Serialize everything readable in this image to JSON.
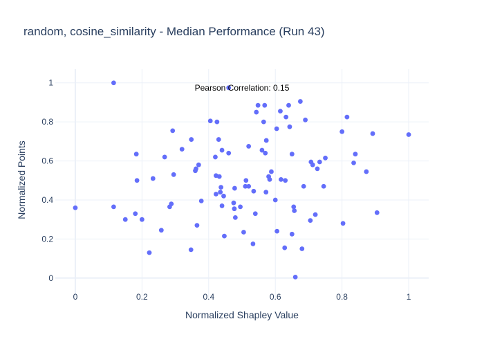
{
  "chart_data": {
    "type": "scatter",
    "title": "random, cosine_similarity - Median Performance (Run 43)",
    "xlabel": "Normalized Shapley Value",
    "ylabel": "Normalized Points",
    "xlim": [
      -0.06,
      1.06
    ],
    "ylim": [
      -0.1,
      1.07
    ],
    "xticks": [
      0,
      0.2,
      0.4,
      0.6,
      0.8,
      1
    ],
    "xtick_labels": [
      "0",
      "0.2",
      "0.4",
      "0.6",
      "0.8",
      "1"
    ],
    "yticks": [
      0,
      0.2,
      0.4,
      0.6,
      0.8,
      1
    ],
    "ytick_labels": [
      "0",
      "0.2",
      "0.4",
      "0.6",
      "0.8",
      "1"
    ],
    "grid": true,
    "marker_color": "#636efa",
    "annotation": {
      "text": "Pearson Correlation: 0.15",
      "x": 0.5,
      "y": 0.975
    },
    "series": [
      {
        "points": [
          [
            0.0,
            0.36
          ],
          [
            0.115,
            1.0
          ],
          [
            0.115,
            0.365
          ],
          [
            0.15,
            0.3
          ],
          [
            0.18,
            0.33
          ],
          [
            0.183,
            0.635
          ],
          [
            0.185,
            0.5
          ],
          [
            0.2,
            0.3
          ],
          [
            0.222,
            0.13
          ],
          [
            0.233,
            0.51
          ],
          [
            0.258,
            0.245
          ],
          [
            0.268,
            0.62
          ],
          [
            0.283,
            0.365
          ],
          [
            0.288,
            0.38
          ],
          [
            0.292,
            0.755
          ],
          [
            0.295,
            0.53
          ],
          [
            0.32,
            0.66
          ],
          [
            0.347,
            0.145
          ],
          [
            0.348,
            0.71
          ],
          [
            0.36,
            0.55
          ],
          [
            0.362,
            0.56
          ],
          [
            0.365,
            0.27
          ],
          [
            0.37,
            0.58
          ],
          [
            0.378,
            0.395
          ],
          [
            0.405,
            0.805
          ],
          [
            0.42,
            0.62
          ],
          [
            0.422,
            0.43
          ],
          [
            0.422,
            0.525
          ],
          [
            0.425,
            0.8
          ],
          [
            0.43,
            0.71
          ],
          [
            0.432,
            0.52
          ],
          [
            0.435,
            0.44
          ],
          [
            0.437,
            0.465
          ],
          [
            0.44,
            0.655
          ],
          [
            0.44,
            0.37
          ],
          [
            0.445,
            0.42
          ],
          [
            0.447,
            0.215
          ],
          [
            0.46,
            0.975
          ],
          [
            0.46,
            0.64
          ],
          [
            0.475,
            0.385
          ],
          [
            0.477,
            0.355
          ],
          [
            0.478,
            0.46
          ],
          [
            0.48,
            0.31
          ],
          [
            0.495,
            0.365
          ],
          [
            0.505,
            0.235
          ],
          [
            0.51,
            0.47
          ],
          [
            0.512,
            0.5
          ],
          [
            0.52,
            0.47
          ],
          [
            0.52,
            0.675
          ],
          [
            0.533,
            0.175
          ],
          [
            0.535,
            0.445
          ],
          [
            0.54,
            0.33
          ],
          [
            0.543,
            0.85
          ],
          [
            0.548,
            0.885
          ],
          [
            0.56,
            0.655
          ],
          [
            0.565,
            0.8
          ],
          [
            0.568,
            0.885
          ],
          [
            0.57,
            0.64
          ],
          [
            0.572,
            0.44
          ],
          [
            0.573,
            0.705
          ],
          [
            0.58,
            0.52
          ],
          [
            0.583,
            0.505
          ],
          [
            0.588,
            0.545
          ],
          [
            0.6,
            0.4
          ],
          [
            0.604,
            0.765
          ],
          [
            0.605,
            0.24
          ],
          [
            0.615,
            0.855
          ],
          [
            0.617,
            0.505
          ],
          [
            0.628,
            0.155
          ],
          [
            0.63,
            0.5
          ],
          [
            0.632,
            0.825
          ],
          [
            0.64,
            0.885
          ],
          [
            0.643,
            0.775
          ],
          [
            0.65,
            0.635
          ],
          [
            0.65,
            0.225
          ],
          [
            0.655,
            0.365
          ],
          [
            0.657,
            0.345
          ],
          [
            0.66,
            0.005
          ],
          [
            0.675,
            0.905
          ],
          [
            0.68,
            0.15
          ],
          [
            0.685,
            0.47
          ],
          [
            0.69,
            0.81
          ],
          [
            0.705,
            0.295
          ],
          [
            0.707,
            0.595
          ],
          [
            0.712,
            0.58
          ],
          [
            0.72,
            0.325
          ],
          [
            0.726,
            0.56
          ],
          [
            0.733,
            0.595
          ],
          [
            0.745,
            0.47
          ],
          [
            0.75,
            0.615
          ],
          [
            0.8,
            0.75
          ],
          [
            0.803,
            0.28
          ],
          [
            0.815,
            0.825
          ],
          [
            0.835,
            0.59
          ],
          [
            0.84,
            0.635
          ],
          [
            0.873,
            0.545
          ],
          [
            0.892,
            0.74
          ],
          [
            0.905,
            0.335
          ],
          [
            1.0,
            0.735
          ]
        ]
      }
    ]
  }
}
